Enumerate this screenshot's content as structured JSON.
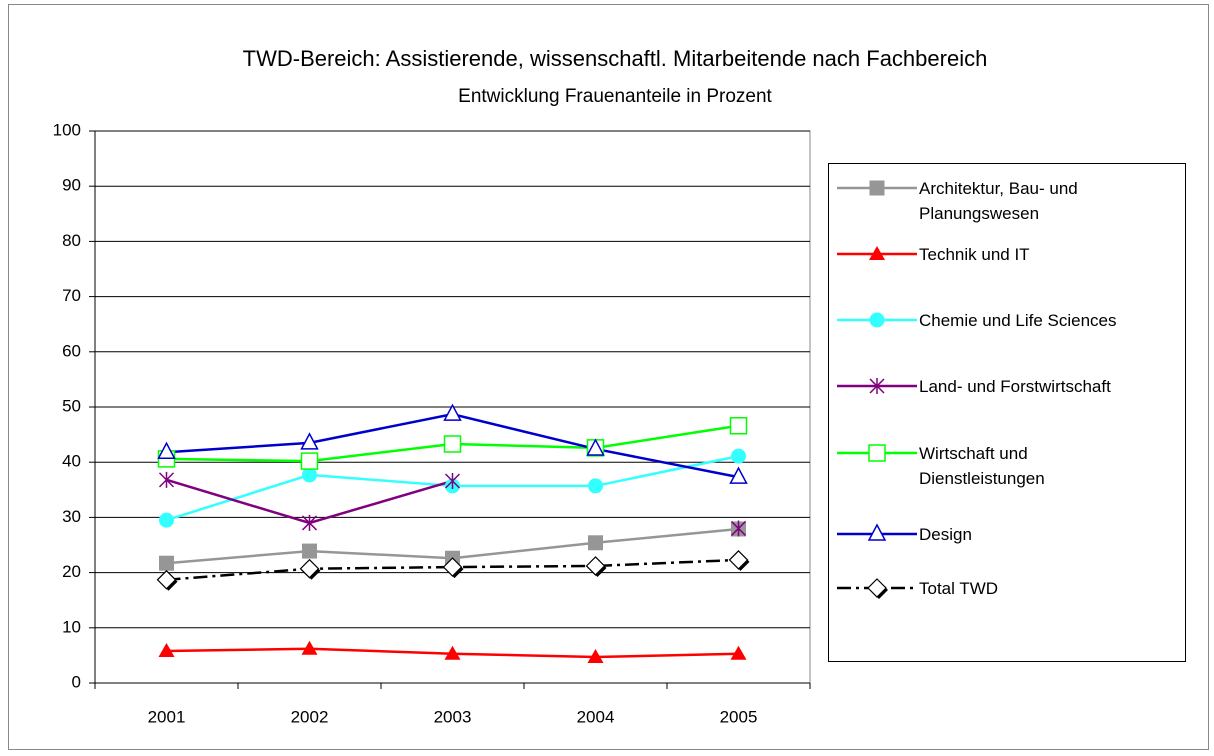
{
  "chart_data": {
    "type": "line",
    "title": "TWD-Bereich: Assistierende, wissenschaftl. Mitarbeitende nach Fachbereich",
    "subtitle": "Entwicklung Frauenanteile in Prozent",
    "categories": [
      "2001",
      "2002",
      "2003",
      "2004",
      "2005"
    ],
    "ylim": [
      0,
      100
    ],
    "yticks": [
      0,
      10,
      20,
      30,
      40,
      50,
      60,
      70,
      80,
      90,
      100
    ],
    "grid": true,
    "legend": "right",
    "series": [
      {
        "name": "Architektur, Bau- und Planungswesen",
        "color": "#969696",
        "marker": "square",
        "values": [
          21.7,
          23.9,
          22.6,
          25.4,
          27.9
        ]
      },
      {
        "name": "Technik und IT",
        "color": "#ff0000",
        "marker": "triangle",
        "values": [
          5.8,
          6.2,
          5.3,
          4.7,
          5.3
        ]
      },
      {
        "name": "Chemie und Life Sciences",
        "color": "#33ffff",
        "marker": "circle",
        "values": [
          29.5,
          37.7,
          35.7,
          35.7,
          41.1
        ]
      },
      {
        "name": "Land- und Forstwirtschaft",
        "color": "#800080",
        "marker": "star",
        "values": [
          36.8,
          29.0,
          36.6,
          null,
          28.0
        ]
      },
      {
        "name": "Wirtschaft und Dienstleistungen",
        "color": "#00ff00",
        "marker": "hollow-square",
        "values": [
          40.6,
          40.2,
          43.3,
          42.6,
          46.6
        ]
      },
      {
        "name": "Design",
        "color": "#0000cc",
        "marker": "hollow-triangle",
        "values": [
          41.8,
          43.5,
          48.7,
          42.4,
          37.3
        ]
      },
      {
        "name": "Total TWD",
        "color": "#000000",
        "marker": "diamond",
        "dash": true,
        "values": [
          18.7,
          20.7,
          21.0,
          21.2,
          22.3
        ]
      }
    ]
  }
}
